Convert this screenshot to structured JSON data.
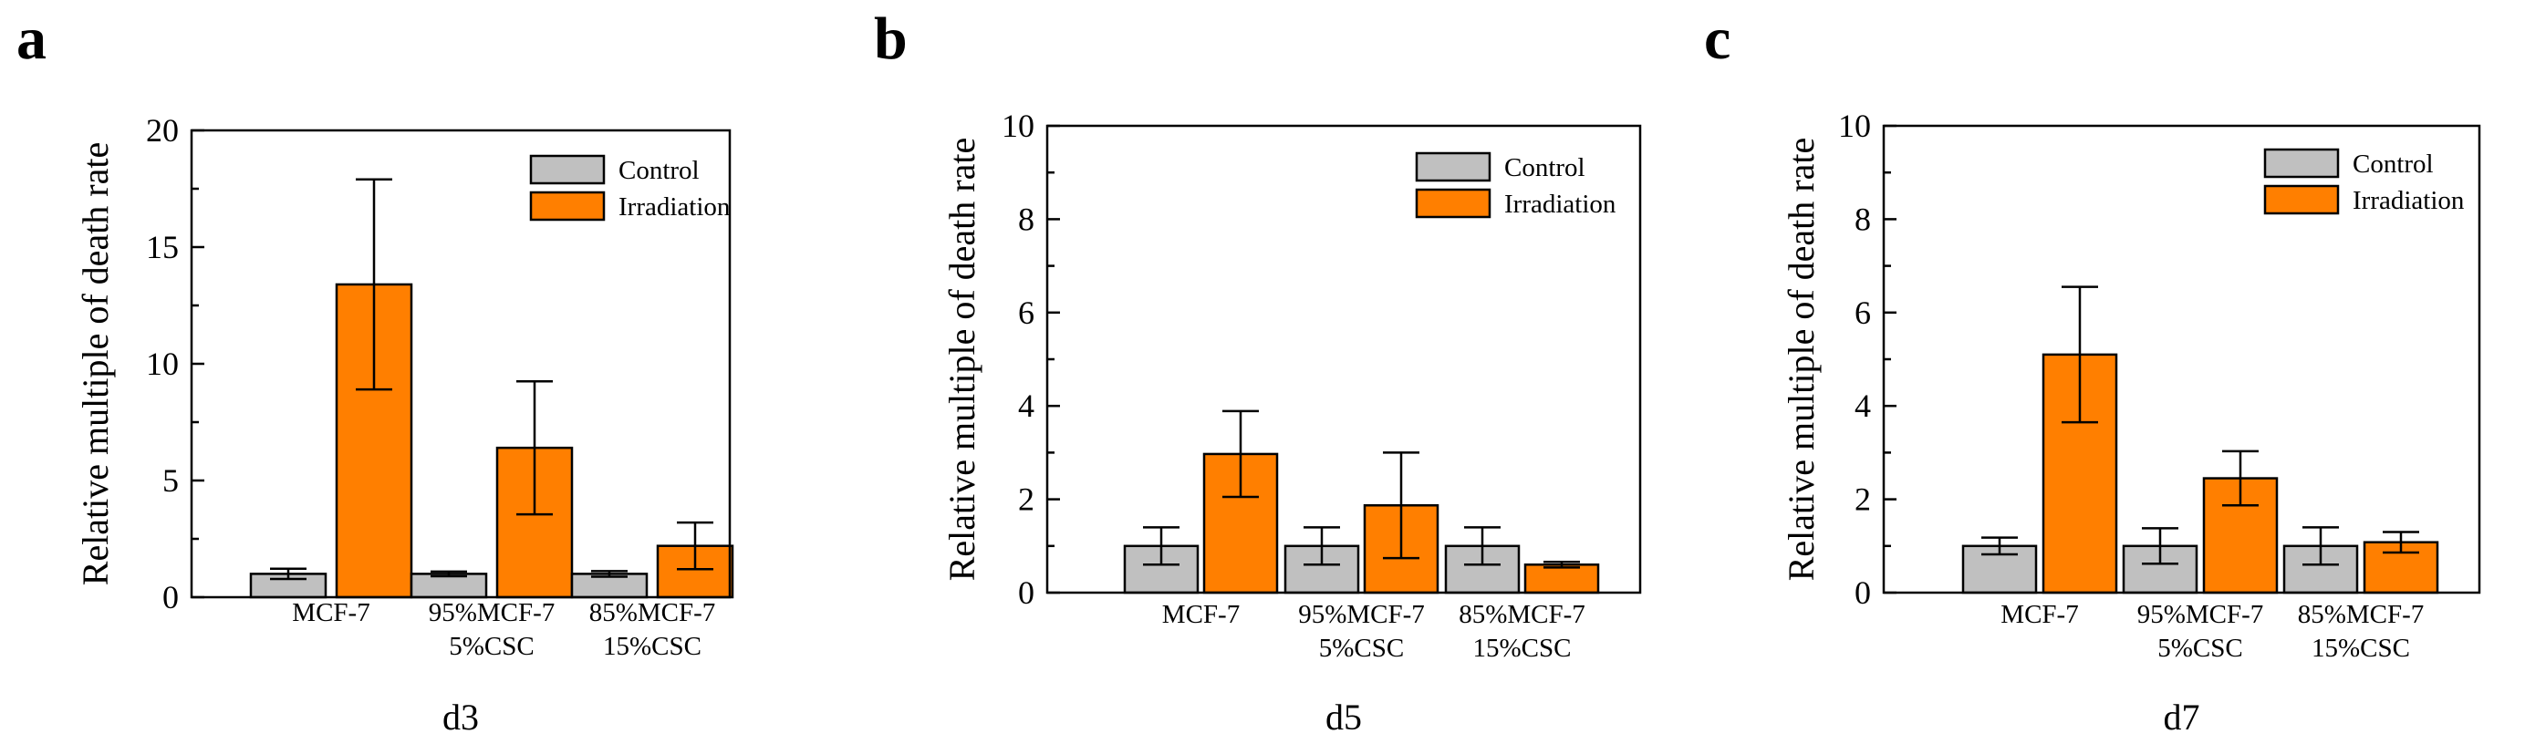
{
  "colors": {
    "control": "#c0c0c0",
    "irradiation": "#ff7f00",
    "axis": "#000000"
  },
  "chart_data": [
    {
      "type": "bar",
      "panel_letter": "a",
      "title": "",
      "xlabel": "d3",
      "ylabel": "Relative multiple of death rate",
      "ylim": [
        0,
        20
      ],
      "yticks": [
        "0",
        "5",
        "10",
        "15",
        "20"
      ],
      "categories": [
        [
          "MCF-7"
        ],
        [
          "95%MCF-7",
          "5%CSC"
        ],
        [
          "85%MCF-7",
          "15%CSC"
        ]
      ],
      "legend": {
        "placement": "top-right",
        "entries": [
          "Control",
          "Irradiation"
        ]
      },
      "series": [
        {
          "name": "Control",
          "values": [
            1.0,
            1.0,
            1.0
          ],
          "errors": [
            0.22,
            0.1,
            0.12
          ]
        },
        {
          "name": "Irradiation",
          "values": [
            13.4,
            6.4,
            2.2
          ],
          "errors": [
            4.5,
            2.85,
            1.0
          ]
        }
      ]
    },
    {
      "type": "bar",
      "panel_letter": "b",
      "title": "",
      "xlabel": "d5",
      "ylabel": "Relative multiple of death rate",
      "ylim": [
        0,
        10
      ],
      "yticks": [
        "0",
        "2",
        "4",
        "6",
        "8",
        "10"
      ],
      "categories": [
        [
          "MCF-7"
        ],
        [
          "95%MCF-7",
          "5%CSC"
        ],
        [
          "85%MCF-7",
          "15%CSC"
        ]
      ],
      "legend": {
        "placement": "top-right",
        "entries": [
          "Control",
          "Irradiation"
        ]
      },
      "series": [
        {
          "name": "Control",
          "values": [
            1.0,
            1.0,
            1.0
          ],
          "errors": [
            0.4,
            0.4,
            0.4
          ]
        },
        {
          "name": "Irradiation",
          "values": [
            2.97,
            1.87,
            0.6
          ],
          "errors": [
            0.92,
            1.13,
            0.06
          ]
        }
      ]
    },
    {
      "type": "bar",
      "panel_letter": "c",
      "title": "",
      "xlabel": "d7",
      "ylabel": "Relative multiple of death rate",
      "ylim": [
        0,
        10
      ],
      "yticks": [
        "0",
        "2",
        "4",
        "6",
        "8",
        "10"
      ],
      "categories": [
        [
          "MCF-7"
        ],
        [
          "95%MCF-7",
          "5%CSC"
        ],
        [
          "85%MCF-7",
          "15%CSC"
        ]
      ],
      "legend": {
        "placement": "top-right",
        "entries": [
          "Control",
          "Irradiation"
        ]
      },
      "series": [
        {
          "name": "Control",
          "values": [
            1.0,
            1.0,
            1.0
          ],
          "errors": [
            0.18,
            0.38,
            0.4
          ]
        },
        {
          "name": "Irradiation",
          "values": [
            5.1,
            2.45,
            1.08
          ],
          "errors": [
            1.45,
            0.58,
            0.22
          ]
        }
      ]
    }
  ]
}
